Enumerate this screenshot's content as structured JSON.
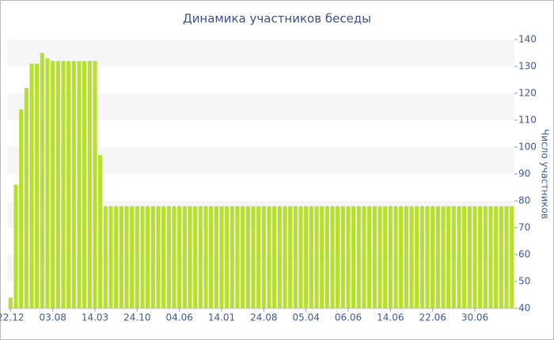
{
  "chart_data": {
    "type": "bar",
    "title": "Динамика участников беседы",
    "y_label": "Число участников",
    "categories": [
      "22.12",
      null,
      null,
      null,
      null,
      null,
      null,
      null,
      "03.08",
      null,
      null,
      null,
      null,
      null,
      null,
      null,
      "14.03",
      null,
      null,
      null,
      null,
      null,
      null,
      null,
      "24.10",
      null,
      null,
      null,
      null,
      null,
      null,
      null,
      "04.06",
      null,
      null,
      null,
      null,
      null,
      null,
      null,
      "14.01",
      null,
      null,
      null,
      null,
      null,
      null,
      null,
      "24.08",
      null,
      null,
      null,
      null,
      null,
      null,
      null,
      "05.04",
      null,
      null,
      null,
      null,
      null,
      null,
      null,
      "06.06",
      null,
      null,
      null,
      null,
      null,
      null,
      null,
      "14.06",
      null,
      null,
      null,
      null,
      null,
      null,
      null,
      "22.06",
      null,
      null,
      null,
      null,
      null,
      null,
      null,
      "30.06",
      null,
      null,
      null,
      null,
      null,
      null,
      null
    ],
    "values": [
      44,
      86,
      114,
      122,
      131,
      131,
      135,
      133,
      132,
      132,
      132,
      132,
      132,
      132,
      132,
      132,
      132,
      97,
      78,
      78,
      78,
      78,
      78,
      78,
      78,
      78,
      78,
      78,
      78,
      78,
      78,
      78,
      78,
      78,
      78,
      78,
      78,
      78,
      78,
      78,
      78,
      78,
      78,
      78,
      78,
      78,
      78,
      78,
      78,
      78,
      78,
      78,
      78,
      78,
      78,
      78,
      78,
      78,
      78,
      78,
      78,
      78,
      78,
      78,
      78,
      78,
      78,
      78,
      78,
      78,
      78,
      78,
      78,
      78,
      78,
      78,
      78,
      78,
      78,
      78,
      78,
      78,
      78,
      78,
      78,
      78,
      78,
      78,
      78,
      78,
      78,
      78,
      78,
      78,
      78,
      78
    ],
    "color": "#b5e02c",
    "ylim": [
      40,
      140
    ],
    "yticks": [
      40,
      50,
      60,
      70,
      80,
      90,
      100,
      110,
      120,
      130,
      140
    ],
    "grid": true,
    "y_axis_side": "right"
  }
}
